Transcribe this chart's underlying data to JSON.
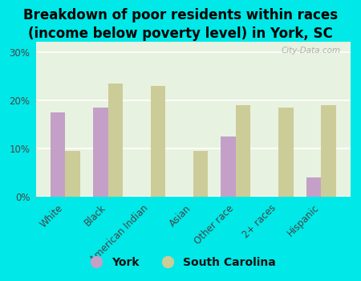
{
  "title": "Breakdown of poor residents within races\n(income below poverty level) in York, SC",
  "categories": [
    "White",
    "Black",
    "American Indian",
    "Asian",
    "Other race",
    "2+ races",
    "Hispanic"
  ],
  "york_values": [
    17.5,
    18.5,
    0,
    0,
    12.5,
    0,
    4.0
  ],
  "sc_values": [
    9.5,
    23.5,
    23.0,
    9.5,
    19.0,
    18.5,
    19.0
  ],
  "york_color": "#c4a0c8",
  "sc_color": "#cccc99",
  "background_color": "#00e8e8",
  "plot_bg_color": "#e8f2e0",
  "title_fontsize": 12,
  "tick_fontsize": 8.5,
  "legend_fontsize": 10,
  "ylim": [
    0,
    32
  ],
  "yticks": [
    0,
    10,
    20,
    30
  ],
  "ytick_labels": [
    "0%",
    "10%",
    "20%",
    "30%"
  ],
  "bar_width": 0.35,
  "watermark": "City-Data.com"
}
